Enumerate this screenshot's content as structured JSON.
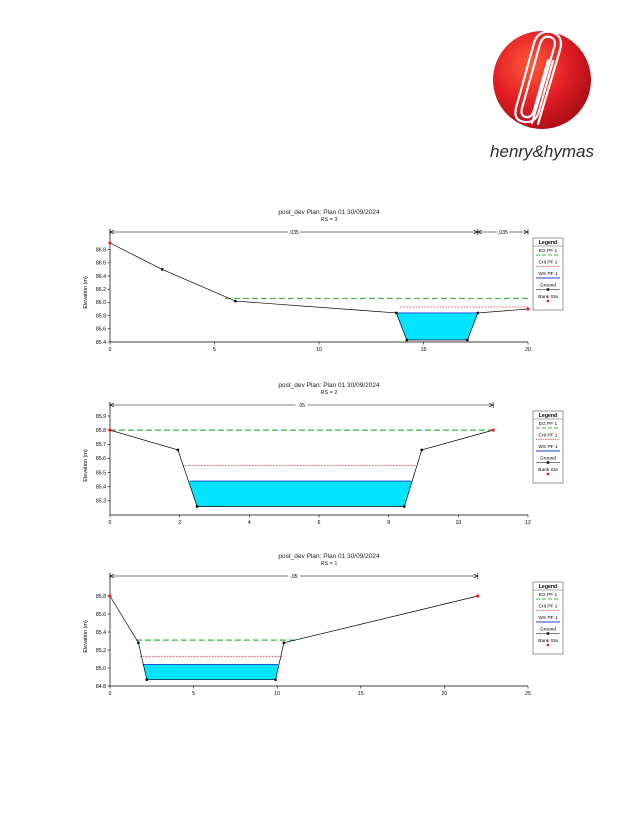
{
  "brand": {
    "name": "henry&hymas",
    "colors": {
      "red": "#e31e24",
      "dark_red": "#b0101a",
      "text": "#2b2b2b"
    }
  },
  "legend": {
    "title": "Legend",
    "items": [
      "EG PF 1",
      "Crit PF 1",
      "WS PF 1",
      "Ground",
      "Bank Sta"
    ]
  },
  "colors": {
    "eg": "#3cb44b",
    "crit": "#e8232a",
    "ws": "#1b3fd1",
    "water": "#00e5ff",
    "ground": "#000000",
    "bank": "#e8232a"
  },
  "chart_data": [
    {
      "type": "line",
      "title": "post_dev        Plan: Plan 01     30/09/2024",
      "subtitle": "RS = 3",
      "xlabel": "Station (m)",
      "ylabel": "Elevation (m)",
      "xlim": [
        0,
        20
      ],
      "ylim": [
        85.4,
        86.9
      ],
      "xticks": [
        0,
        5,
        10,
        15,
        20
      ],
      "yticks": [
        85.4,
        85.6,
        85.8,
        86.0,
        86.2,
        86.4,
        86.6,
        86.8
      ],
      "ytick_labels": [
        "85.4",
        "85.6",
        "85.8",
        "86.0",
        "86.2",
        "86.4",
        "86.6",
        "86.8"
      ],
      "roughness": [
        {
          "from": 0,
          "to": 17.6,
          "label": ".035"
        },
        {
          "from": 17.6,
          "to": 20,
          "label": ".035"
        }
      ],
      "ground": [
        [
          0,
          86.9
        ],
        [
          2.5,
          86.5
        ],
        [
          6.0,
          86.02
        ],
        [
          13.7,
          85.84
        ],
        [
          14.2,
          85.43
        ],
        [
          17.1,
          85.43
        ],
        [
          17.6,
          85.84
        ],
        [
          20,
          85.9
        ]
      ],
      "banks": [
        [
          0,
          86.9
        ],
        [
          20,
          85.9
        ]
      ],
      "eg": {
        "x": [
          5.5,
          20
        ],
        "y": 86.06
      },
      "crit": {
        "x": [
          13.9,
          20
        ],
        "y": 85.93
      },
      "ws": {
        "x": [
          13.75,
          17.55
        ],
        "y": 85.84
      }
    },
    {
      "type": "line",
      "title": "post_dev        Plan: Plan 01     30/09/2024",
      "subtitle": "RS = 2",
      "xlabel": "Station (m)",
      "ylabel": "Elevation (m)",
      "xlim": [
        0,
        12
      ],
      "ylim": [
        85.2,
        85.9
      ],
      "xticks": [
        0,
        2,
        4,
        6,
        8,
        10,
        12
      ],
      "yticks": [
        85.3,
        85.4,
        85.5,
        85.6,
        85.7,
        85.8,
        85.9
      ],
      "ytick_labels": [
        "85.3",
        "85.4",
        "85.5",
        "85.6",
        "85.7",
        "85.8",
        "85.9"
      ],
      "roughness": [
        {
          "from": 0,
          "to": 11,
          "label": ".05"
        }
      ],
      "ground": [
        [
          0,
          85.8
        ],
        [
          1.95,
          85.66
        ],
        [
          2.5,
          85.26
        ],
        [
          8.45,
          85.26
        ],
        [
          8.95,
          85.66
        ],
        [
          11,
          85.8
        ]
      ],
      "banks": [
        [
          0,
          85.8
        ],
        [
          11,
          85.8
        ]
      ],
      "eg": {
        "x": [
          0,
          11
        ],
        "y": 85.8
      },
      "crit": {
        "x": [
          2.1,
          8.8
        ],
        "y": 85.55
      },
      "ws": {
        "x": [
          2.3,
          8.65
        ],
        "y": 85.44
      }
    },
    {
      "type": "line",
      "title": "post_dev        Plan: Plan 01     30/09/2024",
      "subtitle": "RS = 1",
      "xlabel": "Station (m)",
      "ylabel": "Elevation (m)",
      "xlim": [
        0,
        25
      ],
      "ylim": [
        84.8,
        85.9
      ],
      "xticks": [
        0,
        5,
        10,
        15,
        20,
        25
      ],
      "yticks": [
        84.8,
        85.0,
        85.2,
        85.4,
        85.6,
        85.8
      ],
      "ytick_labels": [
        "84.8",
        "85.0",
        "85.2",
        "85.4",
        "85.6",
        "85.8"
      ],
      "roughness": [
        {
          "from": 0,
          "to": 22,
          "label": ".05"
        }
      ],
      "ground": [
        [
          0,
          85.8
        ],
        [
          1.7,
          85.28
        ],
        [
          2.2,
          84.87
        ],
        [
          9.9,
          84.87
        ],
        [
          10.4,
          85.28
        ],
        [
          22,
          85.8
        ]
      ],
      "banks": [
        [
          0,
          85.8
        ],
        [
          22,
          85.8
        ]
      ],
      "eg": {
        "x": [
          1.55,
          11.1
        ],
        "y": 85.31
      },
      "crit": {
        "x": [
          1.8,
          10.3
        ],
        "y": 85.13
      },
      "ws": {
        "x": [
          1.95,
          10.05
        ],
        "y": 85.04
      }
    }
  ]
}
